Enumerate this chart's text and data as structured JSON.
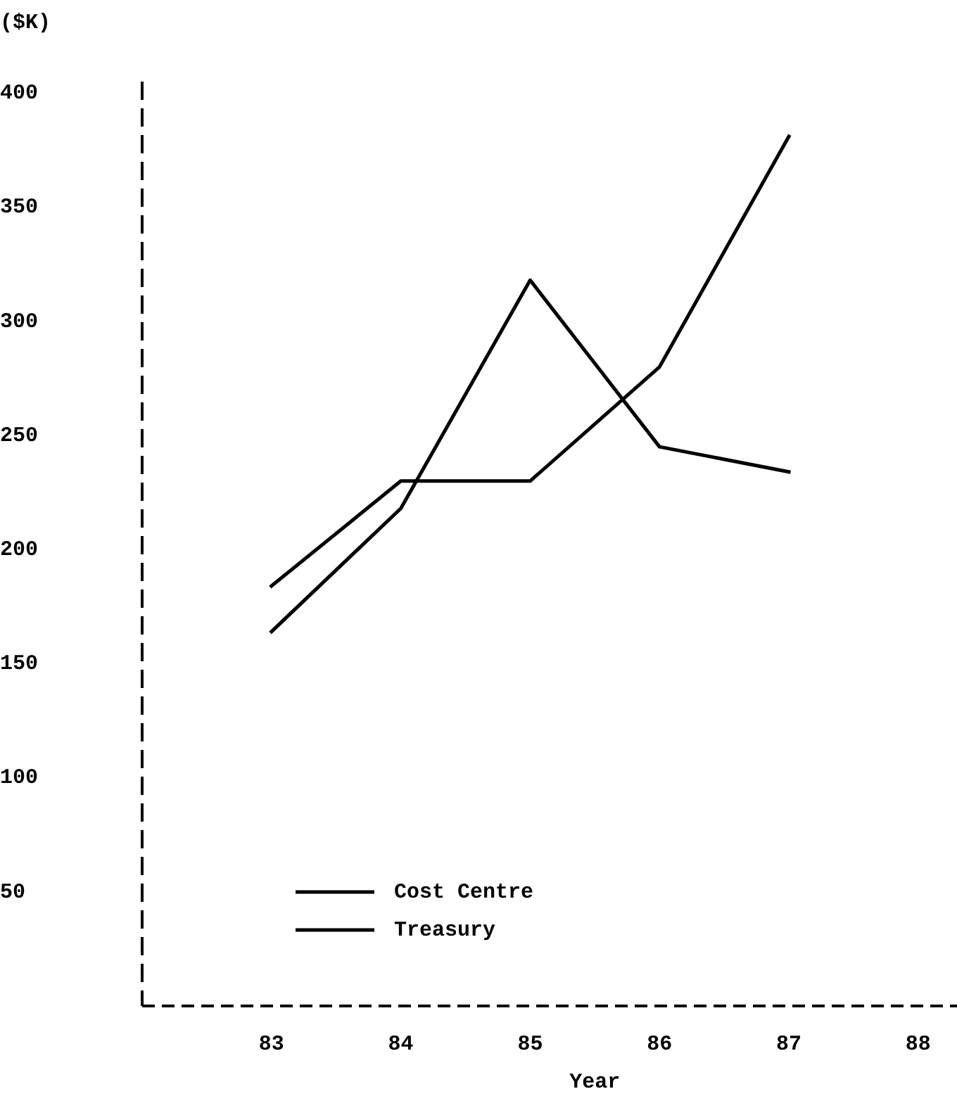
{
  "chart_data": {
    "type": "line",
    "ylabel": "($K)",
    "xlabel": "Year",
    "x": [
      83,
      84,
      85,
      86,
      87
    ],
    "xlim": [
      82,
      88.3
    ],
    "xticks": [
      83,
      84,
      85,
      86,
      87,
      88
    ],
    "ylim": [
      0,
      405
    ],
    "yticks": [
      50,
      100,
      150,
      200,
      250,
      300,
      350,
      400
    ],
    "series": [
      {
        "name": "Cost Centre",
        "color": "#000000",
        "values": [
          164,
          218,
          318,
          245,
          234
        ]
      },
      {
        "name": "Treasury",
        "color": "#000000",
        "values": [
          184,
          230,
          230,
          280,
          381
        ]
      }
    ],
    "legend": "bottom left",
    "grid": false,
    "marker": "none"
  }
}
